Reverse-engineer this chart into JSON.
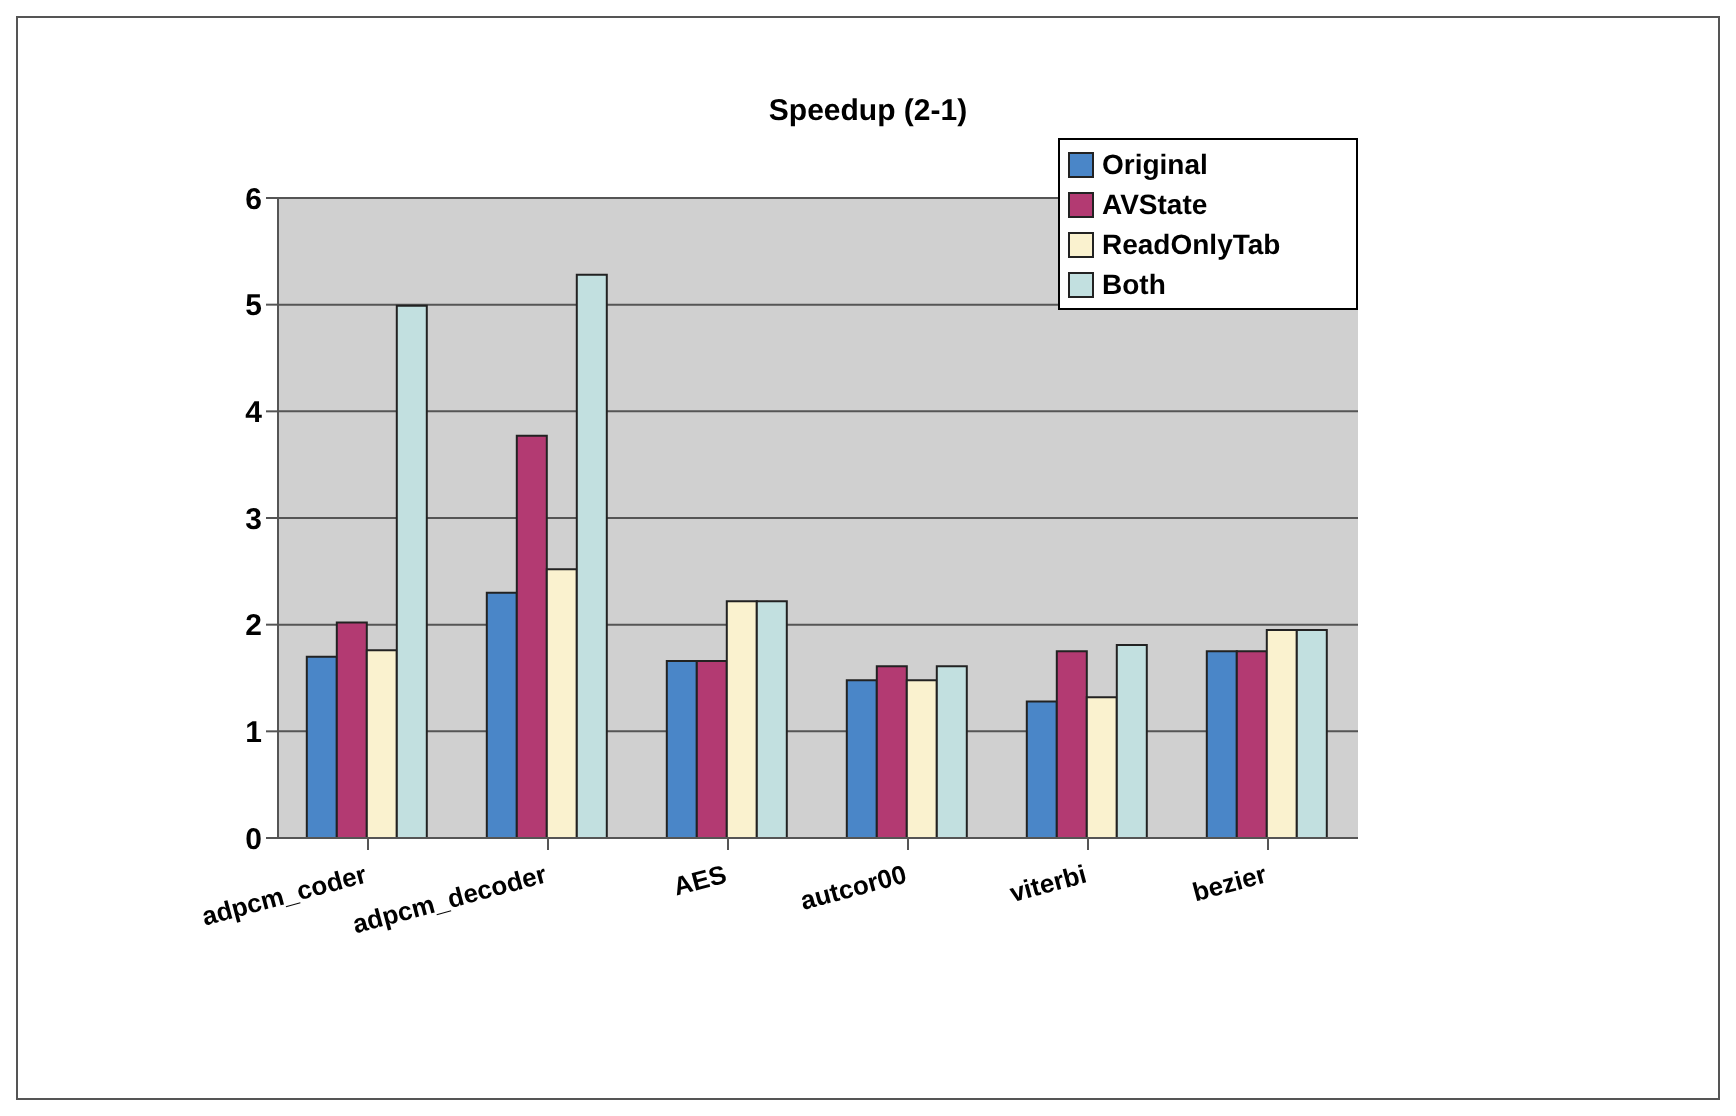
{
  "chart_data": {
    "type": "bar",
    "title": "Speedup (2-1)",
    "categories": [
      "adpcm_coder",
      "adpcm_decoder",
      "AES",
      "autcor00",
      "viterbi",
      "bezier"
    ],
    "series": [
      {
        "name": "Original",
        "color": "#4a86c8",
        "values": [
          1.7,
          2.3,
          1.66,
          1.48,
          1.28,
          1.75
        ]
      },
      {
        "name": "AVState",
        "color": "#b33a72",
        "values": [
          2.02,
          3.77,
          1.66,
          1.61,
          1.75,
          1.75
        ]
      },
      {
        "name": "ReadOnlyTab",
        "color": "#faf2cf",
        "values": [
          1.76,
          2.52,
          2.22,
          1.48,
          1.32,
          1.95
        ]
      },
      {
        "name": "Both",
        "color": "#c2e0e0",
        "values": [
          4.99,
          5.28,
          2.22,
          1.61,
          1.81,
          1.95
        ]
      }
    ],
    "ylim": [
      0,
      6
    ],
    "yticks": [
      0,
      1,
      2,
      3,
      4,
      5,
      6
    ],
    "grid": "y",
    "legend": "top right"
  }
}
